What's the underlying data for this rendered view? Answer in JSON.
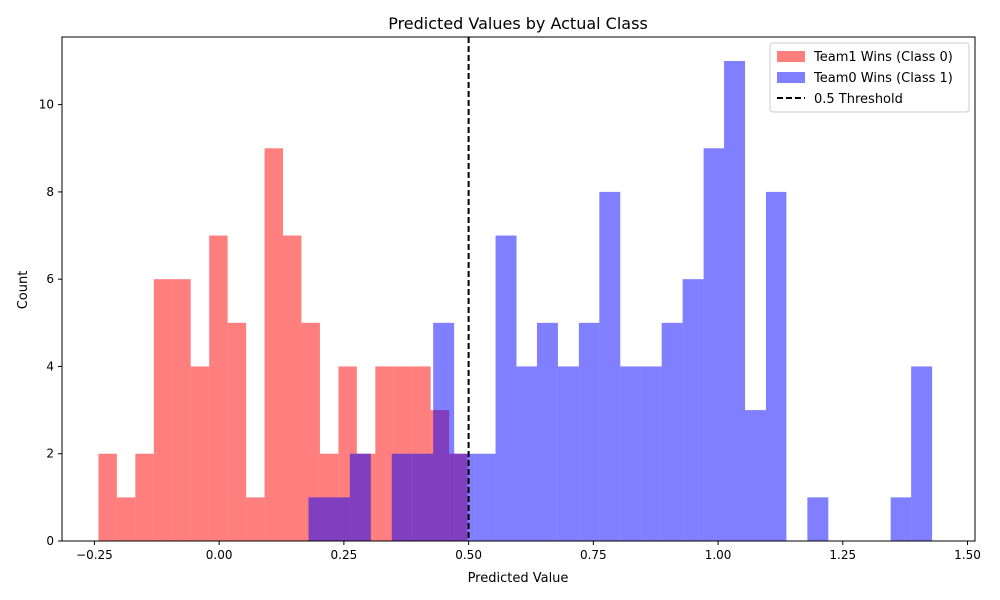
{
  "chart_data": {
    "type": "bar",
    "subtype": "overlapping-histogram",
    "title": "Predicted Values by Actual Class",
    "xlabel": "Predicted Value",
    "ylabel": "Count",
    "xlim": [
      -0.315,
      1.515
    ],
    "ylim": [
      0,
      11.55
    ],
    "x_ticks": [
      -0.25,
      0.0,
      0.25,
      0.5,
      0.75,
      1.0,
      1.25,
      1.5
    ],
    "x_tick_labels": [
      "−0.25",
      "0.00",
      "0.25",
      "0.50",
      "0.75",
      "1.00",
      "1.25",
      "1.50"
    ],
    "y_ticks": [
      0,
      2,
      4,
      6,
      8,
      10
    ],
    "y_tick_labels": [
      "0",
      "2",
      "4",
      "6",
      "8",
      "10"
    ],
    "grid": false,
    "legend_position": "top-right",
    "series": [
      {
        "name": "Team1 Wins (Class 0)",
        "color": "#ff0000",
        "opacity": 0.5,
        "bin_edges": [
          -0.242,
          -0.205,
          -0.168,
          -0.131,
          -0.094,
          -0.057,
          -0.02,
          0.017,
          0.054,
          0.091,
          0.128,
          0.165,
          0.202,
          0.239,
          0.276,
          0.313,
          0.35,
          0.387,
          0.424,
          0.461,
          0.498
        ],
        "counts": [
          2,
          1,
          2,
          6,
          6,
          4,
          7,
          5,
          1,
          9,
          7,
          5,
          2,
          4,
          2,
          4,
          4,
          4,
          3,
          2
        ]
      },
      {
        "name": "Team0 Wins (Class 1)",
        "color": "#0000ff",
        "opacity": 0.5,
        "bin_edges": [
          0.179,
          0.22,
          0.262,
          0.304,
          0.346,
          0.387,
          0.429,
          0.471,
          0.512,
          0.554,
          0.596,
          0.637,
          0.679,
          0.721,
          0.762,
          0.804,
          0.846,
          0.887,
          0.929,
          0.971,
          1.012,
          1.054,
          1.096,
          1.137,
          1.179,
          1.221,
          1.262,
          1.304,
          1.346,
          1.387,
          1.429
        ],
        "counts": [
          1,
          1,
          2,
          0,
          2,
          2,
          5,
          2,
          2,
          7,
          4,
          5,
          4,
          5,
          8,
          4,
          4,
          5,
          6,
          9,
          11,
          3,
          8,
          0,
          1,
          0,
          0,
          0,
          1,
          4
        ]
      }
    ],
    "threshold": {
      "name": "0.5 Threshold",
      "x": 0.5,
      "color": "#000000",
      "style": "dashed"
    }
  }
}
